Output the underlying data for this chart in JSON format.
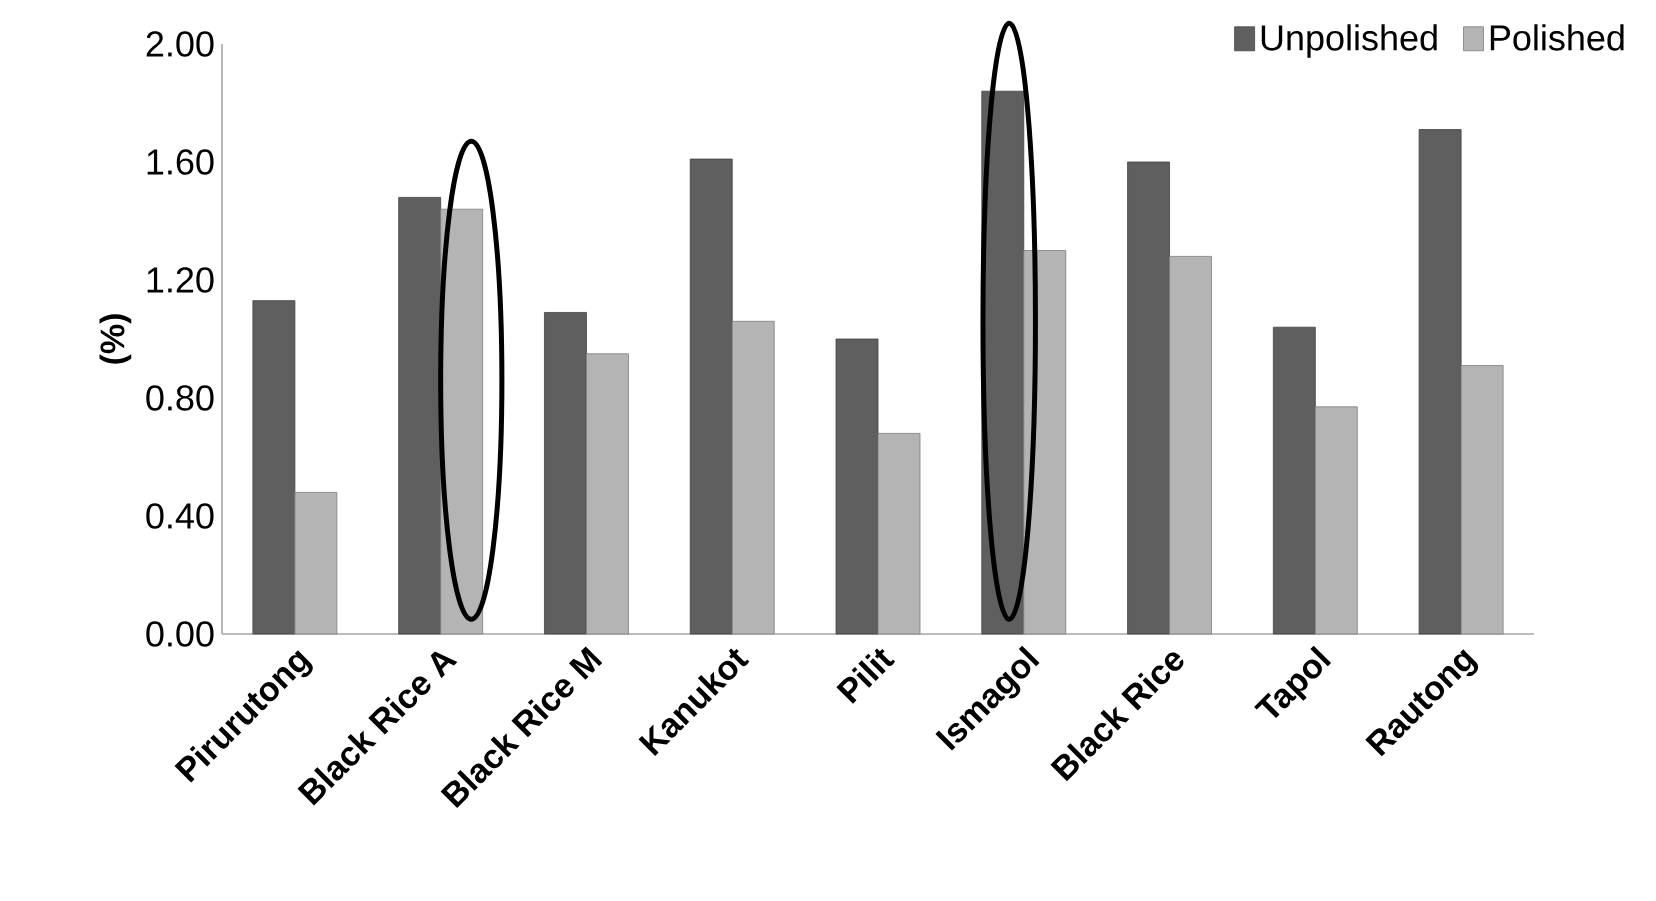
{
  "chart_data": {
    "type": "bar",
    "ylabel": "(%)",
    "categories": [
      "Pirurutong",
      "Black Rice A",
      "Black Rice M",
      "Kanukot",
      "Pilit",
      "Ismagol",
      "Black Rice",
      "Tapol",
      "Rautong"
    ],
    "series": [
      {
        "name": "Unpolished",
        "color": "#5f5f5f",
        "values": [
          1.13,
          1.48,
          1.09,
          1.61,
          1.0,
          1.84,
          1.6,
          1.04,
          1.71
        ]
      },
      {
        "name": "Polished",
        "color": "#b4b4b4",
        "values": [
          0.48,
          1.44,
          0.95,
          1.06,
          0.68,
          1.3,
          1.28,
          0.77,
          0.91
        ]
      }
    ],
    "ylim": [
      0,
      2
    ],
    "yticks": [
      {
        "value": 0,
        "label": "0.00"
      },
      {
        "value": 0.4,
        "label": "0.40"
      },
      {
        "value": 0.8,
        "label": "0.80"
      },
      {
        "value": 1.2,
        "label": "1.20"
      },
      {
        "value": 1.6,
        "label": "1.60"
      },
      {
        "value": 2,
        "label": "2.00"
      }
    ],
    "grid": false,
    "legend": "top right"
  }
}
